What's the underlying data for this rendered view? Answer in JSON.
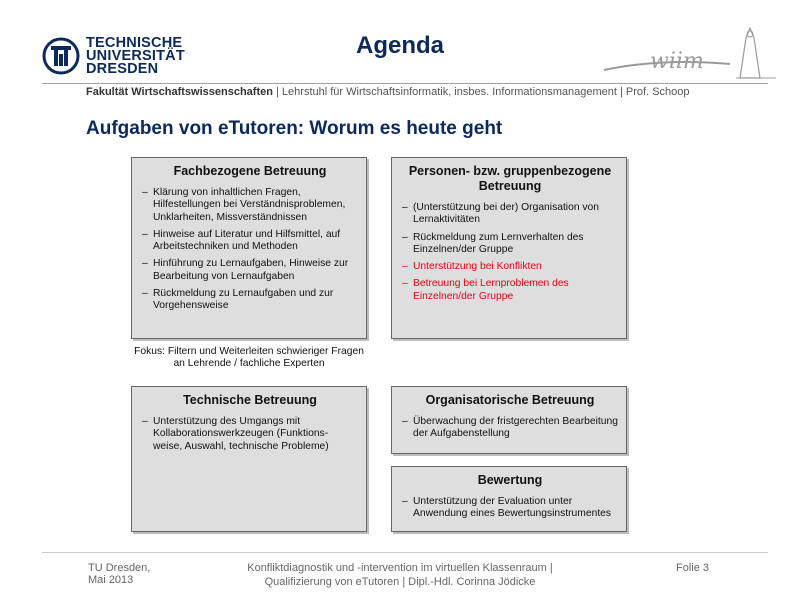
{
  "header": {
    "logo_line1": "TECHNISCHE",
    "logo_line2": "UNIVERSITÄT",
    "logo_line3": "DRESDEN",
    "title": "Agenda",
    "faculty_bold": "Fakultät Wirtschaftswissenschaften",
    "faculty_rest": " | Lehrstuhl für Wirtschaftsinformatik, insbes. Informationsmanagement | Prof. Schoop",
    "wiim_logo_text": "wiim",
    "brand_color": "#0b2a5b"
  },
  "subtitle": "Aufgaben von eTutoren: Worum es heute geht",
  "boxes": {
    "fach": {
      "title": "Fachbezogene Betreuung",
      "items": [
        "Klärung von inhaltlichen Fragen, Hilfestellungen bei Verständnisproblemen, Unklarheiten, Missverständnissen",
        "Hinweise auf Literatur und Hilfsmittel, auf Arbeitstechniken und Methoden",
        "Hinführung zu Lernaufgaben, Hinweise zur Bearbeitung von Lernaufgaben",
        "Rückmeldung zu Lernaufgaben und zur Vorgehensweise"
      ]
    },
    "personen": {
      "title": "Personen- bzw. gruppenbezogene Betreuung",
      "items": [
        "(Unterstützung bei der) Organisation von Lernaktivitäten",
        "Rückmeldung zum Lernverhalten des Einzelnen/der Gruppe"
      ],
      "highlighted_items": [
        "Unterstützung bei Konflikten",
        "Betreuung bei Lernproblemen des Einzelnen/der Gruppe"
      ],
      "highlight_color": "#e30613"
    },
    "technisch": {
      "title": "Technische Betreuung",
      "items": [
        "Unterstützung des Umgangs mit Kollaborationswerkzeugen (Funktions- weise, Auswahl, technische Probleme)"
      ]
    },
    "organisatorisch": {
      "title": "Organisatorische Betreuung",
      "items": [
        "Überwachung der fristgerechten Bearbeitung der Aufgabenstellung"
      ]
    },
    "bewertung": {
      "title": "Bewertung",
      "items": [
        "Unterstützung der Evaluation unter Anwendung eines Bewertungsinstrumentes"
      ]
    }
  },
  "fokus": "Fokus: Filtern und Weiterleiten schwieriger Fragen an Lehrende / fachliche Experten",
  "footer": {
    "left_line1": "TU Dresden,",
    "left_line2": "Mai 2013",
    "center_line1": "Konfliktdiagnostik und -intervention im virtuellen Klassenraum |",
    "center_line2": "Qualifizierung von eTutoren  | Dipl.-Hdl. Corinna Jödicke",
    "slide": "Folie 3"
  }
}
